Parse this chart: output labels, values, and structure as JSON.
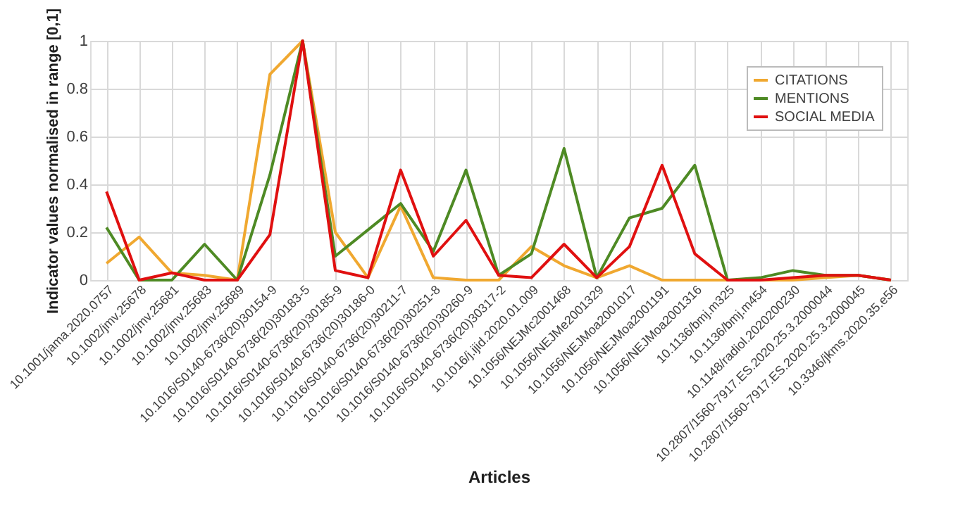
{
  "chart_data": {
    "type": "line",
    "xlabel": "Articles",
    "ylabel": "Indicator values normalised in range [0,1]",
    "categories": [
      "10.1001/jama.2020.0757",
      "10.1002/jmv.25678",
      "10.1002/jmv.25681",
      "10.1002/jmv.25683",
      "10.1002/jmv.25689",
      "10.1016/S0140-6736(20)30154-9",
      "10.1016/S0140-6736(20)30183-5",
      "10.1016/S0140-6736(20)30185-9",
      "10.1016/S0140-6736(20)30186-0",
      "10.1016/S0140-6736(20)30211-7",
      "10.1016/S0140-6736(20)30251-8",
      "10.1016/S0140-6736(20)30260-9",
      "10.1016/S0140-6736(20)30317-2",
      "10.1016/j.ijid.2020.01.009",
      "10.1056/NEJMc2001468",
      "10.1056/NEJMe2001329",
      "10.1056/NEJMoa2001017",
      "10.1056/NEJMoa2001191",
      "10.1056/NEJMoa2001316",
      "10.1136/bmj.m325",
      "10.1136/bmj.m454",
      "10.1148/radiol.2020200230",
      "10.2807/1560-7917.ES.2020.25.3.2000044",
      "10.2807/1560-7917.ES.2020.25.3.2000045",
      "10.3346/jkms.2020.35.e56"
    ],
    "series": [
      {
        "name": "CITATIONS",
        "color": "#f0a830",
        "values": [
          0.07,
          0.18,
          0.03,
          0.02,
          0.0,
          0.86,
          1.0,
          0.2,
          0.01,
          0.31,
          0.01,
          0.0,
          0.0,
          0.14,
          0.06,
          0.01,
          0.06,
          0.0,
          0.0,
          0.0,
          0.0,
          0.0,
          0.01,
          0.02,
          0.0
        ]
      },
      {
        "name": "MENTIONS",
        "color": "#4e8a24",
        "values": [
          0.22,
          0.0,
          0.0,
          0.15,
          0.0,
          0.44,
          1.0,
          0.1,
          0.21,
          0.32,
          0.12,
          0.46,
          0.02,
          0.11,
          0.55,
          0.01,
          0.26,
          0.3,
          0.48,
          0.0,
          0.01,
          0.04,
          0.02,
          0.02,
          0.0
        ]
      },
      {
        "name": "SOCIAL MEDIA",
        "color": "#e01010",
        "values": [
          0.37,
          0.0,
          0.03,
          0.0,
          0.0,
          0.19,
          1.0,
          0.04,
          0.01,
          0.46,
          0.1,
          0.25,
          0.02,
          0.01,
          0.15,
          0.01,
          0.14,
          0.48,
          0.11,
          0.0,
          0.0,
          0.01,
          0.02,
          0.02,
          0.0
        ]
      }
    ],
    "ylim": [
      0,
      1
    ],
    "yticks": [
      0,
      0.2,
      0.4,
      0.6,
      0.8,
      1
    ],
    "grid": true,
    "legend": "top right",
    "line_style": "solid",
    "marker": "none"
  }
}
